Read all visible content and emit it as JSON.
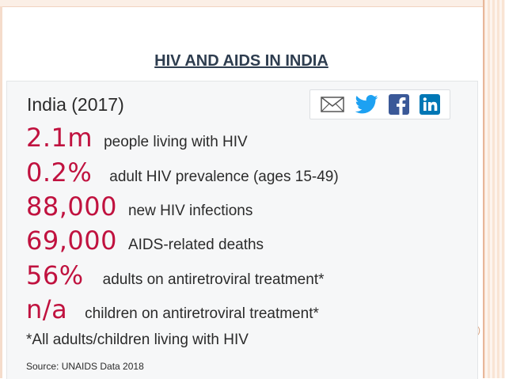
{
  "slide": {
    "title": "HIV AND AIDS IN INDIA",
    "side_mark": ")"
  },
  "card": {
    "title": "India (2017)",
    "share_icons": [
      "email-icon",
      "twitter-icon",
      "facebook-icon",
      "linkedin-icon"
    ],
    "stats": [
      {
        "value": "2.1m",
        "label": "people living with HIV"
      },
      {
        "value": "0.2%",
        "label": "adult HIV prevalence (ages 15-49)"
      },
      {
        "value": "88,000",
        "label": "new HIV infections"
      },
      {
        "value": "69,000",
        "label": "AIDS-related deaths"
      },
      {
        "value": "56%",
        "label": "adults on antiretroviral treatment*"
      },
      {
        "value": "n/a",
        "label": "children on antiretroviral treatment*"
      }
    ],
    "footnote": "*All adults/children living with HIV",
    "source": "Source: UNAIDS Data 2018"
  },
  "colors": {
    "stat_accent": "#c0123f",
    "title_text": "#2e3d4f",
    "twitter": "#1da1f2",
    "facebook": "#3b5998",
    "linkedin": "#0077b5"
  }
}
